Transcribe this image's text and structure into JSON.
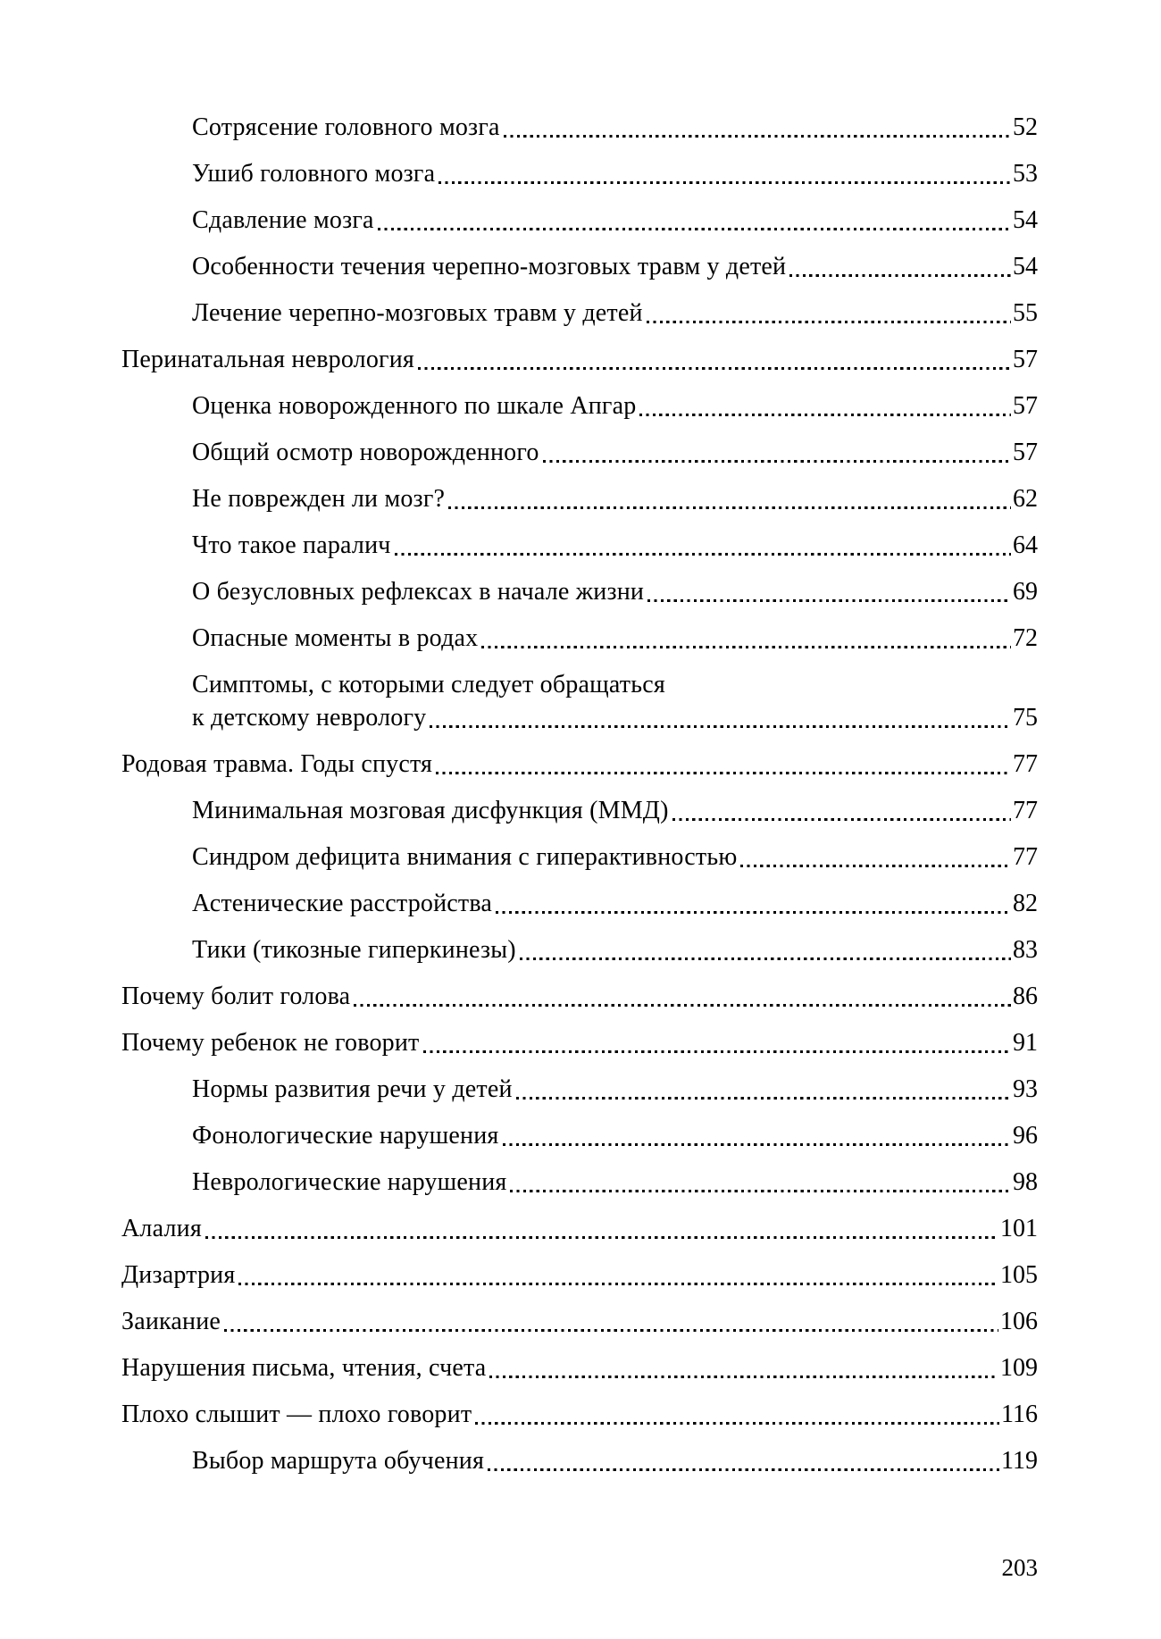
{
  "toc": {
    "entries": [
      {
        "indent": 1,
        "title": "Сотрясение головного мозга",
        "page": "52"
      },
      {
        "indent": 1,
        "title": "Ушиб головного мозга",
        "page": "53"
      },
      {
        "indent": 1,
        "title": "Сдавление мозга",
        "page": "54"
      },
      {
        "indent": 1,
        "title": "Особенности течения черепно-мозговых травм у детей",
        "page": "54"
      },
      {
        "indent": 1,
        "title": "Лечение черепно-мозговых травм у детей",
        "page": "55"
      },
      {
        "indent": 0,
        "title": "Перинатальная неврология",
        "page": "57"
      },
      {
        "indent": 1,
        "title": "Оценка новорожденного по шкале Апгар",
        "page": "57"
      },
      {
        "indent": 1,
        "title": "Общий осмотр новорожденного",
        "page": "57"
      },
      {
        "indent": 1,
        "title": "Не поврежден ли мозг?",
        "page": "62"
      },
      {
        "indent": 1,
        "title": "Что такое паралич",
        "page": "64"
      },
      {
        "indent": 1,
        "title": "О безусловных рефлексах в начале жизни",
        "page": "69"
      },
      {
        "indent": 1,
        "title": "Опасные моменты в родах",
        "page": "72"
      },
      {
        "indent": 1,
        "title": "Симптомы, с которыми следует обращаться",
        "title2": "к детскому неврологу",
        "page": "75"
      },
      {
        "indent": 0,
        "title": "Родовая травма. Годы спустя",
        "page": "77"
      },
      {
        "indent": 1,
        "title": "Минимальная мозговая дисфункция (ММД)",
        "page": "77"
      },
      {
        "indent": 1,
        "title": "Синдром дефицита внимания с гиперактивностью",
        "page": "77"
      },
      {
        "indent": 1,
        "title": "Астенические расстройства",
        "page": "82"
      },
      {
        "indent": 1,
        "title": "Тики (тикозные гиперкинезы)",
        "page": "83"
      },
      {
        "indent": 0,
        "title": "Почему болит голова",
        "page": "86"
      },
      {
        "indent": 0,
        "title": "Почему ребенок не говорит",
        "page": "91"
      },
      {
        "indent": 1,
        "title": "Нормы развития речи у детей",
        "page": "93"
      },
      {
        "indent": 1,
        "title": "Фонологические нарушения",
        "page": "96"
      },
      {
        "indent": 1,
        "title": "Неврологические нарушения",
        "page": "98"
      },
      {
        "indent": 0,
        "title": "Алалия",
        "page": "101"
      },
      {
        "indent": 0,
        "title": "Дизартрия",
        "page": "105"
      },
      {
        "indent": 0,
        "title": "Заикание",
        "page": "106"
      },
      {
        "indent": 0,
        "title": "Нарушения письма, чтения, счета",
        "page": "109"
      },
      {
        "indent": 0,
        "title": "Плохо слышит — плохо говорит",
        "page": "116"
      },
      {
        "indent": 1,
        "title": "Выбор маршрута обучения",
        "page": "119"
      }
    ]
  },
  "footer": {
    "page_number": "203"
  }
}
